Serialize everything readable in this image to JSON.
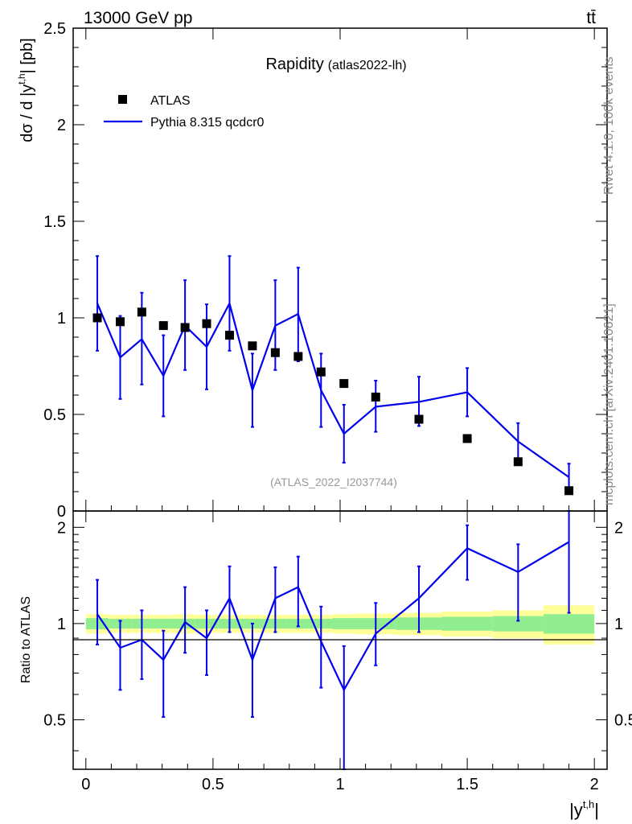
{
  "header": {
    "energy_label": "13000 GeV pp",
    "process_label": "tt̄"
  },
  "side_text": {
    "rivet": "Rivet 4.1.0,  100k events",
    "source": "mcplots.cern.ch [arXiv:2401.10621]"
  },
  "colors": {
    "mc_line": "#0000ee",
    "data_marker": "#000000",
    "band_green": "#90ee90",
    "band_yellow": "#ffff99",
    "watermark": "#999999"
  },
  "chart_data": [
    {
      "type": "scatter",
      "panel": "main",
      "title": "Rapidity",
      "subtitle": "(atlas2022-lh)",
      "watermark": "(ATLAS_2022_I2037744)",
      "ylabel": "dσ / d |y^t,h| [pb]",
      "xlim": [
        -0.05,
        2.05
      ],
      "ylim": [
        0,
        2.5
      ],
      "yticks": [
        0,
        0.5,
        1,
        1.5,
        2,
        2.5
      ],
      "ytick_labels": [
        "0",
        "0.5",
        "1",
        "1.5",
        "2",
        "2.5"
      ],
      "legend_position": "top-left",
      "series": [
        {
          "name": "ATLAS",
          "kind": "data",
          "x": [
            0.045,
            0.135,
            0.22,
            0.305,
            0.39,
            0.475,
            0.565,
            0.655,
            0.745,
            0.835,
            0.925,
            1.015,
            1.14,
            1.31,
            1.5,
            1.7,
            1.9
          ],
          "y": [
            1.0,
            0.98,
            1.03,
            0.96,
            0.95,
            0.97,
            0.91,
            0.855,
            0.82,
            0.8,
            0.72,
            0.66,
            0.59,
            0.475,
            0.375,
            0.255,
            0.105
          ]
        },
        {
          "name": "Pythia 8.315 qcdcr0",
          "kind": "mc",
          "x": [
            0.045,
            0.135,
            0.22,
            0.305,
            0.39,
            0.475,
            0.565,
            0.655,
            0.745,
            0.835,
            0.925,
            1.015,
            1.14,
            1.31,
            1.5,
            1.7,
            1.9
          ],
          "y": [
            1.075,
            0.795,
            0.89,
            0.7,
            0.96,
            0.85,
            1.075,
            0.625,
            0.96,
            1.02,
            0.625,
            0.4,
            0.54,
            0.565,
            0.615,
            0.36,
            0.175
          ],
          "err_low": [
            0.245,
            0.215,
            0.235,
            0.21,
            0.23,
            0.22,
            0.245,
            0.19,
            0.23,
            0.245,
            0.19,
            0.15,
            0.13,
            0.125,
            0.125,
            0.095,
            0.07
          ],
          "err_high": [
            0.245,
            0.215,
            0.24,
            0.21,
            0.235,
            0.22,
            0.245,
            0.19,
            0.235,
            0.24,
            0.19,
            0.15,
            0.135,
            0.13,
            0.125,
            0.095,
            0.07
          ]
        }
      ]
    },
    {
      "type": "line",
      "panel": "ratio",
      "ylabel": "Ratio to ATLAS",
      "xlabel": "|y^t,h|",
      "xlim": [
        -0.05,
        2.05
      ],
      "ylim": [
        0.35,
        2.25
      ],
      "yscale": "log",
      "yticks": [
        0.5,
        1,
        2
      ],
      "ytick_labels": [
        "0.5",
        "1",
        "2"
      ],
      "xticks": [
        0,
        0.5,
        1,
        1.5,
        2
      ],
      "xtick_labels": [
        "0",
        "0.5",
        "1",
        "1.5",
        "2"
      ],
      "bins": [
        0,
        0.09,
        0.18,
        0.26,
        0.35,
        0.43,
        0.52,
        0.61,
        0.7,
        0.79,
        0.88,
        0.97,
        1.06,
        1.22,
        1.4,
        1.6,
        1.8,
        2.0
      ],
      "band_green_half": [
        0.04,
        0.035,
        0.035,
        0.035,
        0.035,
        0.035,
        0.035,
        0.035,
        0.035,
        0.035,
        0.035,
        0.04,
        0.04,
        0.045,
        0.05,
        0.055,
        0.07
      ],
      "band_yellow_half": [
        0.07,
        0.065,
        0.065,
        0.065,
        0.07,
        0.065,
        0.065,
        0.065,
        0.065,
        0.065,
        0.065,
        0.07,
        0.075,
        0.08,
        0.09,
        0.1,
        0.14
      ],
      "series": [
        {
          "name": "Pythia 8.315 qcdcr0 / ATLAS",
          "x": [
            0.045,
            0.135,
            0.22,
            0.305,
            0.39,
            0.475,
            0.565,
            0.655,
            0.745,
            0.835,
            0.925,
            1.015,
            1.14,
            1.31,
            1.5,
            1.7,
            1.9
          ],
          "y": [
            1.07,
            0.84,
            0.89,
            0.77,
            1.01,
            0.9,
            1.2,
            0.77,
            1.2,
            1.3,
            0.88,
            0.62,
            0.93,
            1.2,
            1.72,
            1.45,
            1.8
          ],
          "err_low": [
            0.21,
            0.22,
            0.22,
            0.26,
            0.2,
            0.21,
            0.26,
            0.26,
            0.26,
            0.32,
            0.25,
            0.29,
            0.19,
            0.26,
            0.35,
            0.43,
            0.72
          ],
          "err_high": [
            0.3,
            0.18,
            0.21,
            0.18,
            0.29,
            0.2,
            0.31,
            0.23,
            0.3,
            0.32,
            0.25,
            0.23,
            0.23,
            0.31,
            0.31,
            0.32,
            0.47
          ]
        }
      ]
    }
  ]
}
